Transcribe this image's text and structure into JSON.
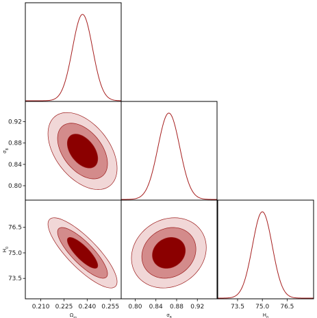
{
  "chart_data": {
    "type": "corner",
    "colors": {
      "line": "#a51c1c",
      "fill_outer": "#f1d7d7",
      "fill_middle": "#d38b8b",
      "fill_inner": "#8b0000",
      "contour_stroke": "#9b1b1b"
    },
    "parameters": [
      {
        "key": "om",
        "label": "Ω_m",
        "range": [
          0.2,
          0.262
        ],
        "ticks": [
          "0.210",
          "0.225",
          "0.240",
          "0.255"
        ],
        "tick_values": [
          0.21,
          0.225,
          0.24,
          0.255
        ],
        "mean": 0.237,
        "sigma": 0.0065
      },
      {
        "key": "s8",
        "label": "σ_8",
        "range": [
          0.773,
          0.958
        ],
        "ticks": [
          "0.80",
          "0.84",
          "0.88",
          "0.92"
        ],
        "tick_values": [
          0.8,
          0.84,
          0.88,
          0.92
        ],
        "mean": 0.865,
        "sigma": 0.021
      },
      {
        "key": "h0",
        "label": "H_0",
        "range": [
          72.3,
          78.1
        ],
        "ticks": [
          "73.5",
          "75.0",
          "76.5"
        ],
        "tick_values": [
          73.5,
          75.0,
          76.5
        ],
        "mean": 75.0,
        "sigma": 0.6
      }
    ],
    "contours": [
      {
        "x": "om",
        "y": "s8",
        "correlation": -0.45
      },
      {
        "x": "om",
        "y": "h0",
        "correlation": -0.82
      },
      {
        "x": "s8",
        "y": "h0",
        "correlation": 0.15
      }
    ],
    "credible_levels": [
      "1σ",
      "2σ",
      "3σ"
    ]
  }
}
